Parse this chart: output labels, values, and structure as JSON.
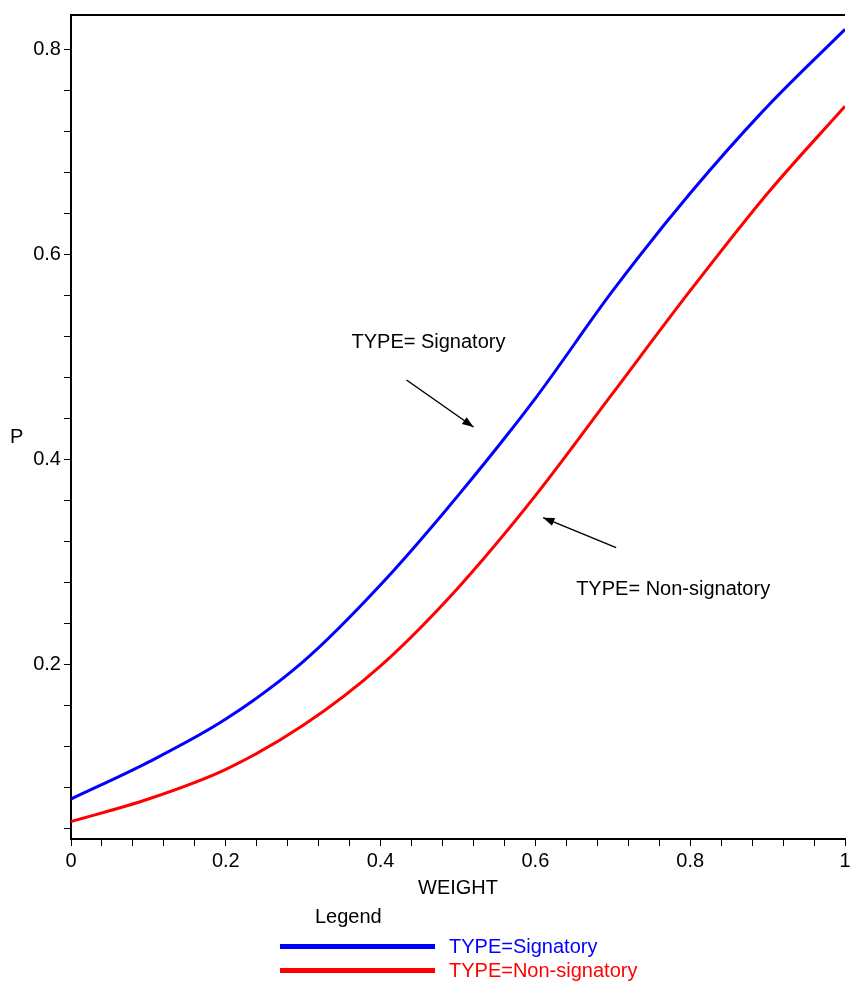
{
  "chart_data": {
    "type": "line",
    "xlabel": "WEIGHT",
    "ylabel": "P",
    "legend_title": "Legend",
    "legend": "bottom",
    "x": [
      0,
      0.1,
      0.2,
      0.3,
      0.4,
      0.5,
      0.6,
      0.7,
      0.8,
      0.9,
      1.0
    ],
    "series": [
      {
        "name": "TYPE=Signatory",
        "color": "#0000ff",
        "values": [
          0.069,
          0.105,
          0.147,
          0.203,
          0.278,
          0.365,
          0.46,
          0.565,
          0.66,
          0.745,
          0.82
        ]
      },
      {
        "name": "TYPE=Non-signatory",
        "color": "#ff0000",
        "values": [
          0.047,
          0.069,
          0.098,
          0.141,
          0.199,
          0.275,
          0.365,
          0.465,
          0.565,
          0.66,
          0.745
        ]
      }
    ],
    "xlim": [
      0,
      1
    ],
    "ylim": [
      0.03,
      0.834
    ],
    "xticks": [
      0,
      {
        "value": 0.04,
        "label": null
      },
      {
        "value": 0.08,
        "label": null
      },
      {
        "value": 0.12,
        "label": null
      },
      {
        "value": 0.16,
        "label": null
      },
      0.2,
      {
        "value": 0.24,
        "label": null
      },
      {
        "value": 0.28,
        "label": null
      },
      {
        "value": 0.32,
        "label": null
      },
      {
        "value": 0.36,
        "label": null
      },
      0.4,
      {
        "value": 0.44,
        "label": null
      },
      {
        "value": 0.48,
        "label": null
      },
      {
        "value": 0.52,
        "label": null
      },
      {
        "value": 0.56,
        "label": null
      },
      0.6,
      {
        "value": 0.64,
        "label": null
      },
      {
        "value": 0.68,
        "label": null
      },
      {
        "value": 0.72,
        "label": null
      },
      {
        "value": 0.76,
        "label": null
      },
      0.8,
      {
        "value": 0.84,
        "label": null
      },
      {
        "value": 0.88,
        "label": null
      },
      {
        "value": 0.92,
        "label": null
      },
      {
        "value": 0.96,
        "label": null
      },
      1
    ],
    "yticks": [
      {
        "value": 0.04,
        "label": null
      },
      {
        "value": 0.08,
        "label": null
      },
      {
        "value": 0.12,
        "label": null
      },
      {
        "value": 0.16,
        "label": null
      },
      0.2,
      {
        "value": 0.24,
        "label": null
      },
      {
        "value": 0.28,
        "label": null
      },
      {
        "value": 0.32,
        "label": null
      },
      {
        "value": 0.36,
        "label": null
      },
      0.4,
      {
        "value": 0.44,
        "label": null
      },
      {
        "value": 0.48,
        "label": null
      },
      {
        "value": 0.52,
        "label": null
      },
      {
        "value": 0.56,
        "label": null
      },
      0.6,
      {
        "value": 0.64,
        "label": null
      },
      {
        "value": 0.68,
        "label": null
      },
      {
        "value": 0.72,
        "label": null
      },
      {
        "value": 0.76,
        "label": null
      },
      0.8
    ],
    "grid": false,
    "marker": "none",
    "line_style": "solid",
    "annotations": [
      "TYPE= Signatory",
      "TYPE= Non-signatory"
    ]
  }
}
